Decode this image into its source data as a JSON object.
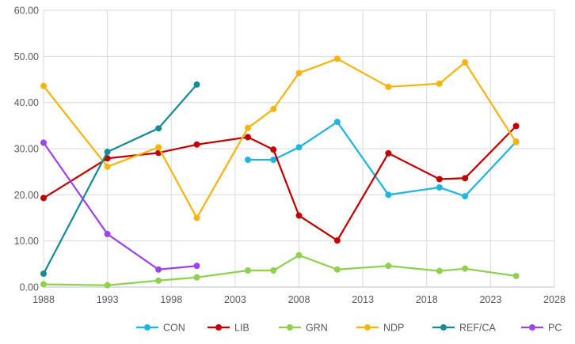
{
  "chart_data": {
    "type": "line",
    "title": "",
    "xlabel": "",
    "ylabel": "",
    "xlim": [
      1988,
      2028
    ],
    "ylim": [
      0,
      60
    ],
    "x_ticks": [
      1988,
      1993,
      1998,
      2003,
      2008,
      2013,
      2018,
      2023,
      2028
    ],
    "y_ticks": [
      0,
      10,
      20,
      30,
      40,
      50,
      60
    ],
    "y_tick_labels": [
      "0.00",
      "10.00",
      "20.00",
      "30.00",
      "40.00",
      "50.00",
      "60.00"
    ],
    "grid": true,
    "legend_position": "bottom",
    "series": [
      {
        "name": "CON",
        "color": "#1FB5E0",
        "points": [
          [
            2004,
            27.6
          ],
          [
            2006,
            27.6
          ],
          [
            2008,
            30.3
          ],
          [
            2011,
            35.8
          ],
          [
            2015,
            20.0
          ],
          [
            2019,
            21.6
          ],
          [
            2021,
            19.7
          ],
          [
            2025,
            31.5
          ]
        ]
      },
      {
        "name": "LIB",
        "color": "#C00000",
        "points": [
          [
            1988,
            19.3
          ],
          [
            1993,
            27.9
          ],
          [
            1997,
            29.1
          ],
          [
            2000,
            30.9
          ],
          [
            2004,
            32.5
          ],
          [
            2006,
            29.8
          ],
          [
            2008,
            15.5
          ],
          [
            2011,
            10.1
          ],
          [
            2015,
            29.0
          ],
          [
            2019,
            23.4
          ],
          [
            2021,
            23.6
          ],
          [
            2025,
            34.9
          ]
        ]
      },
      {
        "name": "GRN",
        "color": "#8FD14F",
        "points": [
          [
            1988,
            0.6
          ],
          [
            1993,
            0.4
          ],
          [
            1997,
            1.4
          ],
          [
            2000,
            2.1
          ],
          [
            2004,
            3.6
          ],
          [
            2006,
            3.6
          ],
          [
            2008,
            6.9
          ],
          [
            2011,
            3.8
          ],
          [
            2015,
            4.6
          ],
          [
            2019,
            3.5
          ],
          [
            2021,
            4.0
          ],
          [
            2025,
            2.4
          ]
        ]
      },
      {
        "name": "NDP",
        "color": "#F5B40F",
        "points": [
          [
            1988,
            43.6
          ],
          [
            1993,
            26.1
          ],
          [
            1997,
            30.3
          ],
          [
            2000,
            15.0
          ],
          [
            2004,
            34.5
          ],
          [
            2006,
            38.6
          ],
          [
            2008,
            46.4
          ],
          [
            2011,
            49.5
          ],
          [
            2015,
            43.4
          ],
          [
            2019,
            44.1
          ],
          [
            2021,
            48.7
          ],
          [
            2025,
            31.4
          ]
        ]
      },
      {
        "name": "REF/CA",
        "color": "#168B93",
        "points": [
          [
            1988,
            2.9
          ],
          [
            1993,
            29.3
          ],
          [
            1997,
            34.4
          ],
          [
            2000,
            43.9
          ]
        ]
      },
      {
        "name": "PC",
        "color": "#9B45E8",
        "points": [
          [
            1988,
            31.3
          ],
          [
            1993,
            11.5
          ],
          [
            1997,
            3.8
          ],
          [
            2000,
            4.6
          ]
        ]
      }
    ]
  }
}
